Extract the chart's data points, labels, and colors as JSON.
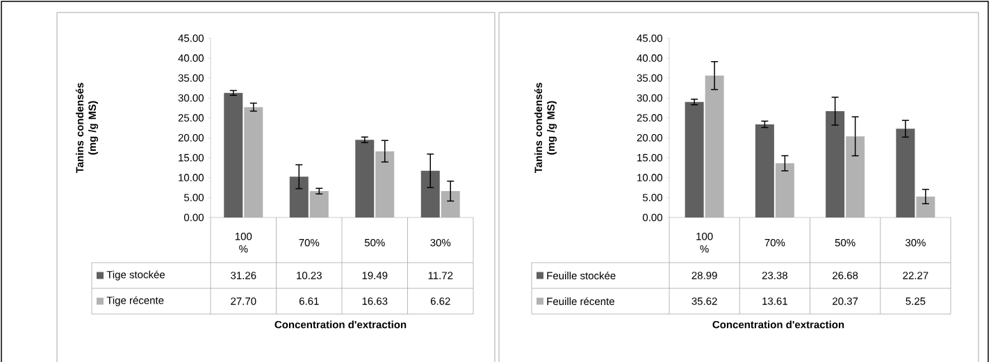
{
  "chart_data": [
    {
      "type": "bar",
      "ylabel": "Tanins condensés (mg /g MS)",
      "xlabel": "Concentration d'extraction",
      "categories": [
        "100 %",
        "70%",
        "50%",
        "30%"
      ],
      "series": [
        {
          "name": "Tige stockée",
          "color": "#606060",
          "values": [
            31.26,
            10.23,
            19.49,
            11.72
          ],
          "value_labels": [
            "31.26",
            "10.23",
            "19.49",
            "11.72"
          ],
          "errors": [
            0.6,
            3.0,
            0.7,
            4.2
          ]
        },
        {
          "name": "Tige récente",
          "color": "#b2b2b2",
          "values": [
            27.7,
            6.61,
            16.63,
            6.62
          ],
          "value_labels": [
            "27.70",
            "6.61",
            "16.63",
            "6.62"
          ],
          "errors": [
            1.0,
            0.7,
            2.7,
            2.5
          ]
        }
      ],
      "ylim": [
        0,
        45
      ],
      "yticks": [
        {
          "value": 0,
          "label": "0.00"
        },
        {
          "value": 5,
          "label": "5.00"
        },
        {
          "value": 10,
          "label": "10.00"
        },
        {
          "value": 15,
          "label": "15.00"
        },
        {
          "value": 20,
          "label": "20.00"
        },
        {
          "value": 25,
          "label": "25.00"
        },
        {
          "value": 30,
          "label": "30.00"
        },
        {
          "value": 35,
          "label": "35.00"
        },
        {
          "value": 40,
          "label": "40.00"
        },
        {
          "value": 45,
          "label": "45.00"
        }
      ],
      "legend": "bottom"
    },
    {
      "type": "bar",
      "ylabel": "Tanins condensés (mg /g MS)",
      "xlabel": "Concentration d'extraction",
      "categories": [
        "100 %",
        "70%",
        "50%",
        "30%"
      ],
      "series": [
        {
          "name": "Feuille stockée",
          "color": "#606060",
          "values": [
            28.99,
            23.38,
            26.68,
            22.27
          ],
          "value_labels": [
            "28.99",
            "23.38",
            "26.68",
            "22.27"
          ],
          "errors": [
            0.7,
            0.8,
            3.5,
            2.1
          ]
        },
        {
          "name": "Feuille récente",
          "color": "#b2b2b2",
          "values": [
            35.62,
            13.61,
            20.37,
            5.25
          ],
          "value_labels": [
            "35.62",
            "13.61",
            "20.37",
            "5.25"
          ],
          "errors": [
            3.5,
            1.9,
            4.9,
            1.8
          ]
        }
      ],
      "ylim": [
        0,
        45
      ],
      "yticks": [
        {
          "value": 0,
          "label": "0.00"
        },
        {
          "value": 5,
          "label": "5.00"
        },
        {
          "value": 10,
          "label": "10.00"
        },
        {
          "value": 15,
          "label": "15.00"
        },
        {
          "value": 20,
          "label": "20.00"
        },
        {
          "value": 25,
          "label": "25.00"
        },
        {
          "value": 30,
          "label": "30.00"
        },
        {
          "value": 35,
          "label": "35.00"
        },
        {
          "value": 40,
          "label": "40.00"
        },
        {
          "value": 45,
          "label": "45.00"
        }
      ],
      "legend": "bottom"
    }
  ]
}
